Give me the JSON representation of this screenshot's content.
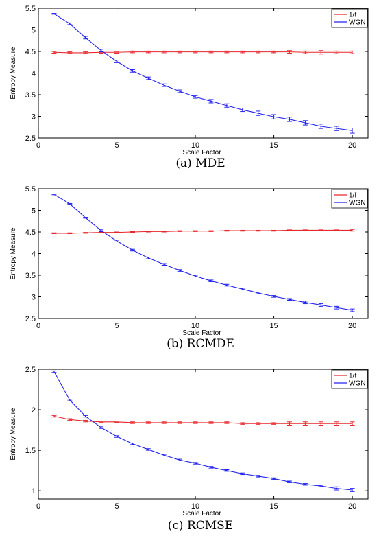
{
  "chart_data": [
    {
      "type": "line",
      "caption": "(a) MDE",
      "xlabel": "Scale Factor",
      "ylabel": "Entropy Measure",
      "xlim": [
        0,
        21
      ],
      "ylim": [
        2.5,
        5.5
      ],
      "xticks": [
        0,
        5,
        10,
        15,
        20
      ],
      "yticks": [
        2.5,
        3,
        3.5,
        4,
        4.5,
        5,
        5.5
      ],
      "ytick_labels": [
        "2.5",
        "3",
        "3.5",
        "4",
        "4.5",
        "5",
        "5.5"
      ],
      "legend_position": "top-right",
      "x": [
        1,
        2,
        3,
        4,
        5,
        6,
        7,
        8,
        9,
        10,
        11,
        12,
        13,
        14,
        15,
        16,
        17,
        18,
        19,
        20
      ],
      "series": [
        {
          "name": "1/f",
          "color": "#e8262b",
          "values": [
            4.48,
            4.47,
            4.47,
            4.48,
            4.48,
            4.49,
            4.49,
            4.49,
            4.49,
            4.49,
            4.49,
            4.49,
            4.49,
            4.49,
            4.49,
            4.49,
            4.48,
            4.48,
            4.48,
            4.48
          ],
          "errors": [
            0.02,
            0.02,
            0.02,
            0.02,
            0.02,
            0.02,
            0.02,
            0.02,
            0.02,
            0.02,
            0.02,
            0.02,
            0.02,
            0.02,
            0.02,
            0.03,
            0.03,
            0.04,
            0.03,
            0.03
          ]
        },
        {
          "name": "WGN",
          "color": "#2222ee",
          "values": [
            5.37,
            5.14,
            4.82,
            4.52,
            4.27,
            4.05,
            3.88,
            3.72,
            3.58,
            3.45,
            3.35,
            3.25,
            3.15,
            3.07,
            2.99,
            2.93,
            2.85,
            2.77,
            2.72,
            2.67
          ],
          "errors": [
            0.01,
            0.02,
            0.03,
            0.03,
            0.03,
            0.03,
            0.03,
            0.03,
            0.03,
            0.03,
            0.04,
            0.04,
            0.04,
            0.05,
            0.05,
            0.05,
            0.05,
            0.05,
            0.05,
            0.06
          ]
        }
      ]
    },
    {
      "type": "line",
      "caption": "(b) RCMDE",
      "xlabel": "Scale Factor",
      "ylabel": "Entropy Measure",
      "xlim": [
        0,
        21
      ],
      "ylim": [
        2.5,
        5.5
      ],
      "xticks": [
        0,
        5,
        10,
        15,
        20
      ],
      "yticks": [
        2.5,
        3,
        3.5,
        4,
        4.5,
        5,
        5.5
      ],
      "ytick_labels": [
        "2.5",
        "3",
        "3.5",
        "4",
        "4.5",
        "5",
        "5.5"
      ],
      "legend_position": "top-right",
      "x": [
        1,
        2,
        3,
        4,
        5,
        6,
        7,
        8,
        9,
        10,
        11,
        12,
        13,
        14,
        15,
        16,
        17,
        18,
        19,
        20
      ],
      "series": [
        {
          "name": "1/f",
          "color": "#e8262b",
          "values": [
            4.47,
            4.47,
            4.48,
            4.49,
            4.49,
            4.5,
            4.51,
            4.51,
            4.52,
            4.52,
            4.52,
            4.53,
            4.53,
            4.53,
            4.53,
            4.54,
            4.54,
            4.54,
            4.54,
            4.54
          ],
          "errors": [
            0.01,
            0.01,
            0.01,
            0.01,
            0.01,
            0.01,
            0.01,
            0.01,
            0.01,
            0.01,
            0.01,
            0.01,
            0.01,
            0.01,
            0.01,
            0.01,
            0.01,
            0.01,
            0.01,
            0.02
          ]
        },
        {
          "name": "WGN",
          "color": "#2222ee",
          "values": [
            5.37,
            5.15,
            4.83,
            4.53,
            4.29,
            4.08,
            3.9,
            3.75,
            3.61,
            3.48,
            3.37,
            3.27,
            3.18,
            3.09,
            3.01,
            2.94,
            2.87,
            2.81,
            2.75,
            2.69
          ],
          "errors": [
            0.01,
            0.01,
            0.01,
            0.02,
            0.02,
            0.02,
            0.02,
            0.02,
            0.02,
            0.02,
            0.02,
            0.02,
            0.02,
            0.02,
            0.02,
            0.02,
            0.03,
            0.03,
            0.03,
            0.03
          ]
        }
      ]
    },
    {
      "type": "line",
      "caption": "(c) RCMSE",
      "xlabel": "Scale Factor",
      "ylabel": "Entropy Measure",
      "xlim": [
        0,
        21
      ],
      "ylim": [
        0.9,
        2.5
      ],
      "xticks": [
        0,
        5,
        10,
        15,
        20
      ],
      "yticks": [
        1,
        1.5,
        2,
        2.5
      ],
      "ytick_labels": [
        "1",
        "1.5",
        "2",
        "2.5"
      ],
      "legend_position": "top-right",
      "x": [
        1,
        2,
        3,
        4,
        5,
        6,
        7,
        8,
        9,
        10,
        11,
        12,
        13,
        14,
        15,
        16,
        17,
        18,
        19,
        20
      ],
      "series": [
        {
          "name": "1/f",
          "color": "#e8262b",
          "values": [
            1.92,
            1.88,
            1.86,
            1.85,
            1.85,
            1.84,
            1.84,
            1.84,
            1.84,
            1.84,
            1.84,
            1.84,
            1.83,
            1.83,
            1.83,
            1.83,
            1.83,
            1.83,
            1.83,
            1.83
          ],
          "errors": [
            0.01,
            0.01,
            0.01,
            0.01,
            0.01,
            0.01,
            0.01,
            0.01,
            0.01,
            0.01,
            0.01,
            0.01,
            0.01,
            0.01,
            0.01,
            0.02,
            0.02,
            0.02,
            0.02,
            0.02
          ]
        },
        {
          "name": "WGN",
          "color": "#2222ee",
          "values": [
            2.47,
            2.12,
            1.92,
            1.78,
            1.67,
            1.58,
            1.51,
            1.44,
            1.38,
            1.34,
            1.29,
            1.25,
            1.21,
            1.18,
            1.15,
            1.11,
            1.08,
            1.06,
            1.03,
            1.01
          ],
          "errors": [
            0.01,
            0.01,
            0.01,
            0.01,
            0.01,
            0.01,
            0.01,
            0.01,
            0.01,
            0.01,
            0.01,
            0.01,
            0.01,
            0.01,
            0.01,
            0.01,
            0.01,
            0.01,
            0.02,
            0.02
          ]
        }
      ]
    }
  ]
}
